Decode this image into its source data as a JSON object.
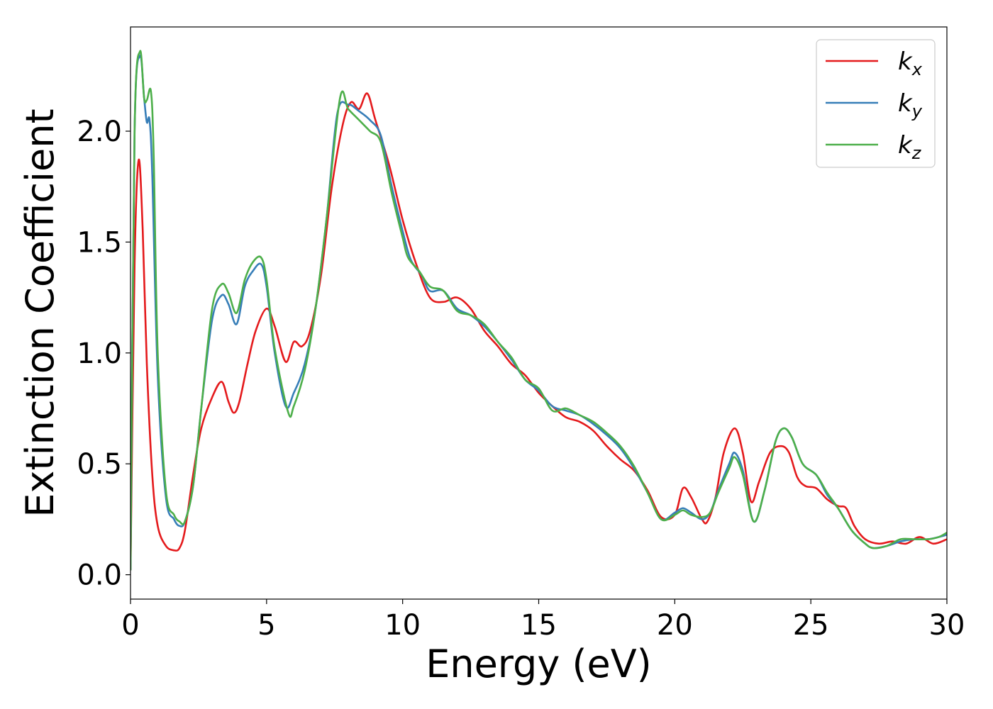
{
  "chart_data": {
    "type": "line",
    "xlabel": "Energy (eV)",
    "ylabel": "Extinction Coefficient",
    "xlim": [
      0,
      30
    ],
    "ylim": [
      -0.11,
      2.47
    ],
    "xticks": [
      0,
      5,
      10,
      15,
      20,
      25,
      30
    ],
    "yticks": [
      0.0,
      0.5,
      1.0,
      1.5,
      2.0
    ],
    "xtick_labels": [
      "0",
      "5",
      "10",
      "15",
      "20",
      "25",
      "30"
    ],
    "ytick_labels": [
      "0.0",
      "0.5",
      "1.0",
      "1.5",
      "2.0"
    ],
    "grid": false,
    "legend_position": "top-right",
    "series": [
      {
        "name": "k",
        "subscript": "x",
        "color": "#e41a1c",
        "x": [
          0,
          0.15,
          0.3,
          0.45,
          0.6,
          0.8,
          1.0,
          1.3,
          1.6,
          1.8,
          2.0,
          2.3,
          2.6,
          3.0,
          3.35,
          3.6,
          3.8,
          4.0,
          4.3,
          4.6,
          5.0,
          5.3,
          5.7,
          6.0,
          6.3,
          6.6,
          7.0,
          7.4,
          7.8,
          8.1,
          8.4,
          8.7,
          9.0,
          9.5,
          10.0,
          10.5,
          11.0,
          11.5,
          12.0,
          12.5,
          13.0,
          13.5,
          14.0,
          14.5,
          15.0,
          15.5,
          16.0,
          16.5,
          17.0,
          17.5,
          18.0,
          18.5,
          19.0,
          19.5,
          20.0,
          20.3,
          20.6,
          21.0,
          21.2,
          21.5,
          21.8,
          22.2,
          22.5,
          22.8,
          23.1,
          23.5,
          23.9,
          24.2,
          24.5,
          24.8,
          25.2,
          25.6,
          26.0,
          26.3,
          26.6,
          27.0,
          27.5,
          28.0,
          28.5,
          29.0,
          29.5,
          30.0
        ],
        "values": [
          0.02,
          1.4,
          1.87,
          1.55,
          0.95,
          0.45,
          0.22,
          0.13,
          0.11,
          0.12,
          0.2,
          0.45,
          0.66,
          0.8,
          0.87,
          0.78,
          0.73,
          0.78,
          0.95,
          1.1,
          1.2,
          1.12,
          0.96,
          1.05,
          1.03,
          1.1,
          1.35,
          1.75,
          2.03,
          2.13,
          2.1,
          2.17,
          2.05,
          1.85,
          1.6,
          1.4,
          1.25,
          1.23,
          1.25,
          1.2,
          1.1,
          1.03,
          0.95,
          0.9,
          0.82,
          0.76,
          0.71,
          0.69,
          0.65,
          0.58,
          0.52,
          0.47,
          0.38,
          0.26,
          0.27,
          0.39,
          0.35,
          0.25,
          0.24,
          0.35,
          0.55,
          0.66,
          0.55,
          0.33,
          0.42,
          0.55,
          0.58,
          0.55,
          0.44,
          0.4,
          0.39,
          0.34,
          0.31,
          0.3,
          0.22,
          0.16,
          0.14,
          0.15,
          0.14,
          0.17,
          0.14,
          0.16
        ]
      },
      {
        "name": "k",
        "subscript": "y",
        "color": "#377eb8",
        "x": [
          0,
          0.15,
          0.35,
          0.5,
          0.6,
          0.7,
          0.8,
          1.0,
          1.3,
          1.6,
          1.8,
          2.0,
          2.3,
          2.6,
          3.0,
          3.35,
          3.6,
          3.9,
          4.2,
          4.5,
          4.8,
          5.0,
          5.3,
          5.7,
          6.0,
          6.4,
          6.8,
          7.2,
          7.6,
          8.0,
          8.4,
          8.8,
          9.2,
          9.6,
          10.0,
          10.3,
          10.7,
          11.0,
          11.5,
          12.0,
          12.5,
          13.0,
          13.5,
          14.0,
          14.5,
          15.0,
          15.5,
          16.0,
          16.5,
          17.0,
          17.5,
          18.0,
          18.5,
          19.0,
          19.5,
          20.0,
          20.3,
          20.6,
          21.0,
          21.3,
          21.6,
          22.0,
          22.2,
          22.5,
          22.9,
          23.3,
          23.7,
          24.0,
          24.3,
          24.7,
          25.2,
          25.6,
          26.0,
          26.5,
          27.0,
          27.3,
          27.8,
          28.3,
          28.8,
          29.3,
          29.7,
          30.0
        ],
        "values": [
          0.02,
          2.0,
          2.34,
          2.15,
          2.04,
          2.05,
          1.8,
          0.9,
          0.35,
          0.25,
          0.22,
          0.24,
          0.4,
          0.75,
          1.15,
          1.26,
          1.22,
          1.13,
          1.3,
          1.37,
          1.4,
          1.3,
          1.0,
          0.76,
          0.82,
          0.95,
          1.2,
          1.6,
          2.08,
          2.12,
          2.09,
          2.05,
          1.98,
          1.75,
          1.55,
          1.42,
          1.35,
          1.28,
          1.28,
          1.2,
          1.17,
          1.12,
          1.05,
          0.97,
          0.88,
          0.83,
          0.76,
          0.74,
          0.72,
          0.68,
          0.63,
          0.57,
          0.48,
          0.37,
          0.25,
          0.28,
          0.3,
          0.28,
          0.25,
          0.28,
          0.38,
          0.5,
          0.55,
          0.47,
          0.24,
          0.38,
          0.6,
          0.66,
          0.62,
          0.5,
          0.45,
          0.36,
          0.3,
          0.2,
          0.14,
          0.12,
          0.13,
          0.15,
          0.16,
          0.16,
          0.17,
          0.18
        ]
      },
      {
        "name": "k",
        "subscript": "z",
        "color": "#4daf4a",
        "x": [
          0,
          0.15,
          0.35,
          0.5,
          0.6,
          0.75,
          0.85,
          1.0,
          1.3,
          1.6,
          1.8,
          2.0,
          2.3,
          2.6,
          3.0,
          3.35,
          3.6,
          3.9,
          4.2,
          4.5,
          4.8,
          5.0,
          5.3,
          5.8,
          6.0,
          6.4,
          6.8,
          7.2,
          7.7,
          8.0,
          8.4,
          8.8,
          9.2,
          9.6,
          10.0,
          10.2,
          10.6,
          11.0,
          11.5,
          12.0,
          12.5,
          13.0,
          13.5,
          14.0,
          14.5,
          15.0,
          15.5,
          16.0,
          16.5,
          17.0,
          17.5,
          18.0,
          18.5,
          19.0,
          19.5,
          20.0,
          20.3,
          20.6,
          21.0,
          21.3,
          21.6,
          22.0,
          22.2,
          22.5,
          22.9,
          23.3,
          23.7,
          24.0,
          24.3,
          24.7,
          25.2,
          25.6,
          26.0,
          26.5,
          27.0,
          27.3,
          27.8,
          28.3,
          28.8,
          29.3,
          29.7,
          30.0
        ],
        "values": [
          0.02,
          2.0,
          2.36,
          2.15,
          2.14,
          2.18,
          1.9,
          1.0,
          0.38,
          0.27,
          0.24,
          0.24,
          0.4,
          0.75,
          1.2,
          1.31,
          1.27,
          1.18,
          1.33,
          1.41,
          1.43,
          1.33,
          1.02,
          0.73,
          0.76,
          0.92,
          1.2,
          1.6,
          2.15,
          2.1,
          2.05,
          2.0,
          1.95,
          1.72,
          1.52,
          1.43,
          1.37,
          1.3,
          1.28,
          1.19,
          1.17,
          1.13,
          1.05,
          0.98,
          0.88,
          0.84,
          0.74,
          0.75,
          0.72,
          0.69,
          0.64,
          0.58,
          0.49,
          0.37,
          0.25,
          0.27,
          0.29,
          0.27,
          0.26,
          0.28,
          0.37,
          0.48,
          0.53,
          0.45,
          0.24,
          0.38,
          0.6,
          0.66,
          0.62,
          0.5,
          0.45,
          0.37,
          0.3,
          0.2,
          0.14,
          0.12,
          0.13,
          0.16,
          0.16,
          0.16,
          0.17,
          0.19
        ]
      }
    ]
  }
}
